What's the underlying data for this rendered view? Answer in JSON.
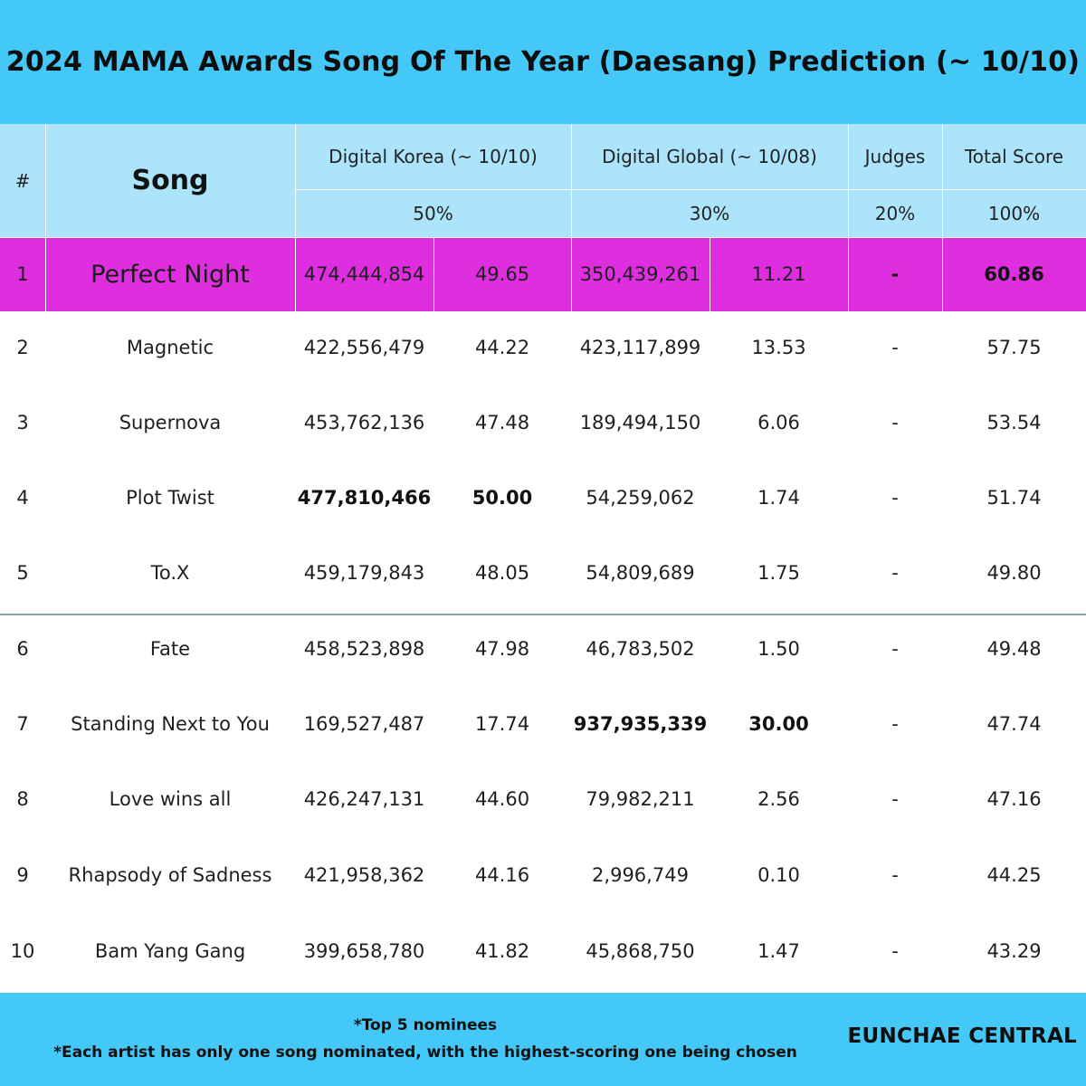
{
  "chart_data": {
    "type": "table",
    "title": "2024 MAMA Awards Song Of The Year (Daesang) Prediction (~ 10/10)",
    "headers": {
      "rank": "#",
      "song": "Song",
      "digital_korea": "Digital Korea (~ 10/10)",
      "digital_global": "Digital Global (~ 10/08)",
      "judges": "Judges",
      "total": "Total Score"
    },
    "weights": {
      "digital_korea": "50%",
      "digital_global": "30%",
      "judges": "20%",
      "total": "100%"
    },
    "rows": [
      {
        "rank": "1",
        "song": "Perfect Night",
        "korea_value": "474,444,854",
        "korea_score": "49.65",
        "global_value": "350,439,261",
        "global_score": "11.21",
        "judges": "-",
        "total": "60.86"
      },
      {
        "rank": "2",
        "song": "Magnetic",
        "korea_value": "422,556,479",
        "korea_score": "44.22",
        "global_value": "423,117,899",
        "global_score": "13.53",
        "judges": "-",
        "total": "57.75"
      },
      {
        "rank": "3",
        "song": "Supernova",
        "korea_value": "453,762,136",
        "korea_score": "47.48",
        "global_value": "189,494,150",
        "global_score": "6.06",
        "judges": "-",
        "total": "53.54"
      },
      {
        "rank": "4",
        "song": "Plot Twist",
        "korea_value": "477,810,466",
        "korea_score": "50.00",
        "global_value": "54,259,062",
        "global_score": "1.74",
        "judges": "-",
        "total": "51.74"
      },
      {
        "rank": "5",
        "song": "To.X",
        "korea_value": "459,179,843",
        "korea_score": "48.05",
        "global_value": "54,809,689",
        "global_score": "1.75",
        "judges": "-",
        "total": "49.80"
      },
      {
        "rank": "6",
        "song": "Fate",
        "korea_value": "458,523,898",
        "korea_score": "47.98",
        "global_value": "46,783,502",
        "global_score": "1.50",
        "judges": "-",
        "total": "49.48"
      },
      {
        "rank": "7",
        "song": "Standing Next to You",
        "korea_value": "169,527,487",
        "korea_score": "17.74",
        "global_value": "937,935,339",
        "global_score": "30.00",
        "judges": "-",
        "total": "47.74"
      },
      {
        "rank": "8",
        "song": "Love wins all",
        "korea_value": "426,247,131",
        "korea_score": "44.60",
        "global_value": "79,982,211",
        "global_score": "2.56",
        "judges": "-",
        "total": "47.16"
      },
      {
        "rank": "9",
        "song": "Rhapsody of Sadness",
        "korea_value": "421,958,362",
        "korea_score": "44.16",
        "global_value": "2,996,749",
        "global_score": "0.10",
        "judges": "-",
        "total": "44.25"
      },
      {
        "rank": "10",
        "song": "Bam Yang Gang",
        "korea_value": "399,658,780",
        "korea_score": "41.82",
        "global_value": "45,868,750",
        "global_score": "1.47",
        "judges": "-",
        "total": "43.29"
      }
    ],
    "highlighted_row": "1",
    "bold_cells": [
      [
        "4",
        "korea_value"
      ],
      [
        "4",
        "korea_score"
      ],
      [
        "7",
        "global_value"
      ],
      [
        "7",
        "global_score"
      ],
      [
        "1",
        "judges"
      ],
      [
        "1",
        "total"
      ]
    ],
    "colors": {
      "banner": "#43c8f7",
      "header_fill": "#ace4fb",
      "highlight_row": "#df2edf",
      "separator": "#8aa3b3"
    }
  },
  "footer": {
    "note1": "*Top 5 nominees",
    "note2": "*Each artist has only one song nominated, with the highest-scoring one being chosen",
    "brand": "EUNCHAE CENTRAL"
  }
}
